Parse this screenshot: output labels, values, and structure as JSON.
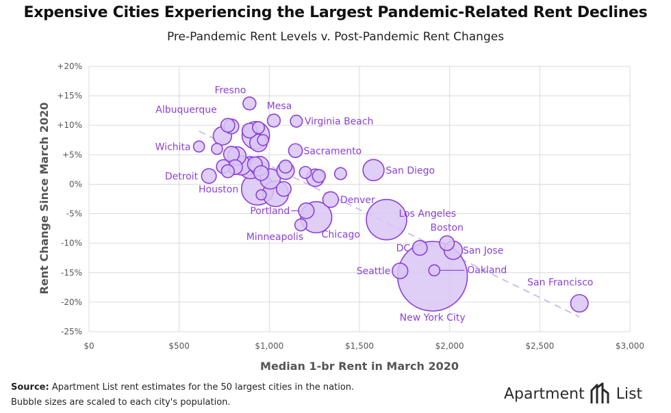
{
  "title": "Expensive Cities Experiencing the Largest Pandemic-Related Rent Declines",
  "subtitle": "Pre-Pandemic Rent Levels v. Post-Pandemic Rent Changes",
  "footer": {
    "source_label": "Source:",
    "source_text": "Apartment List rent estimates for the 50 largest cities in the nation.",
    "note": "Bubble sizes are scaled to each city's population."
  },
  "logo": {
    "left": "Apartment",
    "right": "List",
    "icon": "apartment-list-logo-icon"
  },
  "colors": {
    "bubble_fill": "#d9c6f5",
    "bubble_stroke": "#8a3fd9",
    "label": "#8a3fd9",
    "trend": "#cdbdf0",
    "grid": "#d9d9d9",
    "axis_text": "#555555"
  },
  "chart_data": {
    "type": "scatter",
    "xlabel": "Median 1-br Rent in March 2020",
    "ylabel": "Rent Change Since March 2020",
    "xlim": [
      0,
      3000
    ],
    "ylim": [
      -25,
      20
    ],
    "xticks": [
      0,
      500,
      1000,
      1500,
      2000,
      2500,
      3000
    ],
    "xtick_labels": [
      "$0",
      "$500",
      "$1,000",
      "$1,500",
      "$2,000",
      "$2,500",
      "$3,000"
    ],
    "yticks": [
      20,
      15,
      10,
      5,
      0,
      -5,
      -10,
      -15,
      -20,
      -25
    ],
    "ytick_labels": [
      "+20%",
      "+15%",
      "+10%",
      "+5%",
      "0%",
      "-5%",
      "-10%",
      "-15%",
      "-20%",
      "-25%"
    ],
    "grid": true,
    "trendline": {
      "style": "dashed",
      "x": [
        610,
        2720
      ],
      "y": [
        9,
        -22.5
      ]
    },
    "points": [
      {
        "label": "Fresno",
        "x": 890,
        "y": 13.7,
        "size": 1.4
      },
      {
        "label": "Mesa",
        "x": 1025,
        "y": 10.8,
        "size": 1.4
      },
      {
        "label": "Virginia Beach",
        "x": 1150,
        "y": 10.7,
        "size": 1.3
      },
      {
        "label": "Albuquerque",
        "x": 770,
        "y": 10.0,
        "size": 1.5
      },
      {
        "label": "",
        "x": 790,
        "y": 9.8,
        "size": 1.6
      },
      {
        "label": "",
        "x": 740,
        "y": 8.2,
        "size": 2.0
      },
      {
        "label": "",
        "x": 890,
        "y": 9.1,
        "size": 1.6
      },
      {
        "label": "",
        "x": 940,
        "y": 9.6,
        "size": 1.3
      },
      {
        "label": "",
        "x": 925,
        "y": 8.3,
        "size": 3.0
      },
      {
        "label": "",
        "x": 965,
        "y": 7.5,
        "size": 1.2
      },
      {
        "label": "",
        "x": 940,
        "y": 7.0,
        "size": 1.9
      },
      {
        "label": "Wichita",
        "x": 610,
        "y": 6.4,
        "size": 1.2
      },
      {
        "label": "",
        "x": 710,
        "y": 6.0,
        "size": 1.2
      },
      {
        "label": "Sacramento",
        "x": 1145,
        "y": 5.7,
        "size": 1.5
      },
      {
        "label": "",
        "x": 790,
        "y": 5.1,
        "size": 1.7
      },
      {
        "label": "",
        "x": 820,
        "y": 4.8,
        "size": 2.0
      },
      {
        "label": "",
        "x": 745,
        "y": 3.0,
        "size": 1.5
      },
      {
        "label": "",
        "x": 810,
        "y": 2.9,
        "size": 1.6
      },
      {
        "label": "",
        "x": 845,
        "y": 3.2,
        "size": 2.1
      },
      {
        "label": "",
        "x": 895,
        "y": 2.8,
        "size": 2.4
      },
      {
        "label": "",
        "x": 920,
        "y": 3.4,
        "size": 1.6
      },
      {
        "label": "",
        "x": 945,
        "y": 3.1,
        "size": 2.1
      },
      {
        "label": "",
        "x": 955,
        "y": 1.9,
        "size": 1.6
      },
      {
        "label": "",
        "x": 770,
        "y": 2.2,
        "size": 1.4
      },
      {
        "label": "",
        "x": 1090,
        "y": 3.0,
        "size": 1.4
      },
      {
        "label": "",
        "x": 1090,
        "y": 2.3,
        "size": 1.9
      },
      {
        "label": "",
        "x": 1200,
        "y": 2.0,
        "size": 1.3
      },
      {
        "label": "",
        "x": 1275,
        "y": 1.4,
        "size": 1.4
      },
      {
        "label": "",
        "x": 1255,
        "y": 1.1,
        "size": 1.9
      },
      {
        "label": "",
        "x": 1395,
        "y": 1.8,
        "size": 1.3
      },
      {
        "label": "San Diego",
        "x": 1578,
        "y": 2.4,
        "size": 2.3
      },
      {
        "label": "Detroit",
        "x": 665,
        "y": 1.4,
        "size": 1.6
      },
      {
        "label": "",
        "x": 1005,
        "y": 0.9,
        "size": 2.2
      },
      {
        "label": "Houston",
        "x": 935,
        "y": -0.8,
        "size": 3.5
      },
      {
        "label": "",
        "x": 1080,
        "y": -0.8,
        "size": 1.6
      },
      {
        "label": "",
        "x": 1035,
        "y": -1.6,
        "size": 2.8
      },
      {
        "label": "",
        "x": 955,
        "y": -1.8,
        "size": 1.1
      },
      {
        "label": "Denver",
        "x": 1340,
        "y": -2.6,
        "size": 1.7
      },
      {
        "label": "Portland",
        "x": 1205,
        "y": -4.5,
        "size": 1.7
      },
      {
        "label": "Chicago",
        "x": 1260,
        "y": -5.6,
        "size": 3.4
      },
      {
        "label": "Minneapolis",
        "x": 1175,
        "y": -6.9,
        "size": 1.3
      },
      {
        "label": "Los Angeles",
        "x": 1650,
        "y": -6.0,
        "size": 4.4
      },
      {
        "label": "Boston",
        "x": 1985,
        "y": -10.0,
        "size": 1.6
      },
      {
        "label": "DC",
        "x": 1835,
        "y": -10.8,
        "size": 1.6
      },
      {
        "label": "San Jose",
        "x": 2020,
        "y": -11.2,
        "size": 2.0
      },
      {
        "label": "Seattle",
        "x": 1725,
        "y": -14.7,
        "size": 1.7
      },
      {
        "label": "Oakland",
        "x": 1915,
        "y": -14.6,
        "size": 1.2
      },
      {
        "label": "New York City",
        "x": 1905,
        "y": -15.6,
        "size": 7.6
      },
      {
        "label": "San Francisco",
        "x": 2720,
        "y": -20.2,
        "size": 1.9
      }
    ]
  }
}
